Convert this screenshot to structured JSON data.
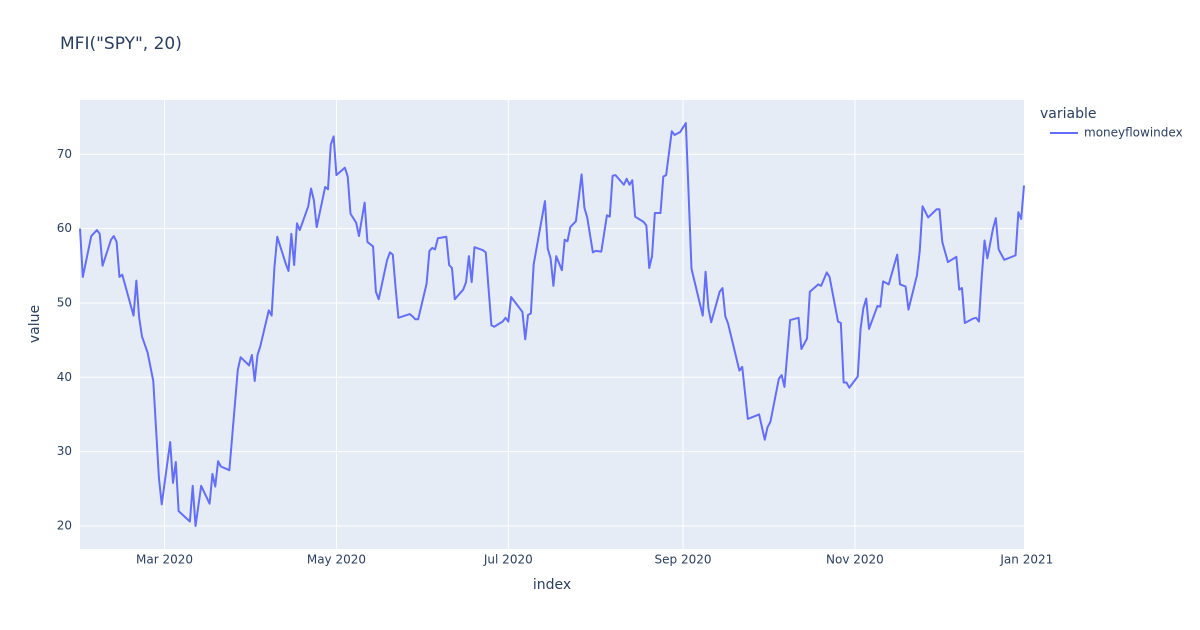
{
  "chart_data": {
    "type": "line",
    "title": "MFI(\"SPY\", 20)",
    "x_label": "index",
    "y_label": "value",
    "legend_title": "variable",
    "grid": true,
    "xlim": [
      "2020-01-31",
      "2020-12-31"
    ],
    "xticks": [
      {
        "value": "2020-03-01",
        "label": "Mar 2020"
      },
      {
        "value": "2020-05-01",
        "label": "May 2020"
      },
      {
        "value": "2020-07-01",
        "label": "Jul 2020"
      },
      {
        "value": "2020-09-01",
        "label": "Sep 2020"
      },
      {
        "value": "2020-11-01",
        "label": "Nov 2020"
      },
      {
        "value": "2021-01-01",
        "label": "Jan 2021"
      }
    ],
    "ylim": [
      16.9,
      77.3
    ],
    "yticks": [
      20,
      30,
      40,
      50,
      60,
      70
    ],
    "x": [
      "2020-01-31",
      "2020-02-01",
      "2020-02-04",
      "2020-02-06",
      "2020-02-07",
      "2020-02-08",
      "2020-02-11",
      "2020-02-12",
      "2020-02-13",
      "2020-02-14",
      "2020-02-15",
      "2020-02-19",
      "2020-02-20",
      "2020-02-21",
      "2020-02-22",
      "2020-02-24",
      "2020-02-26",
      "2020-02-28",
      "2020-02-29",
      "2020-03-03",
      "2020-03-04",
      "2020-03-05",
      "2020-03-06",
      "2020-03-10",
      "2020-03-11",
      "2020-03-12",
      "2020-03-14",
      "2020-03-17",
      "2020-03-18",
      "2020-03-19",
      "2020-03-20",
      "2020-03-21",
      "2020-03-24",
      "2020-03-27",
      "2020-03-28",
      "2020-03-31",
      "2020-04-01",
      "2020-04-02",
      "2020-04-03",
      "2020-04-04",
      "2020-04-07",
      "2020-04-08",
      "2020-04-09",
      "2020-04-10",
      "2020-04-13",
      "2020-04-14",
      "2020-04-15",
      "2020-04-16",
      "2020-04-17",
      "2020-04-18",
      "2020-04-21",
      "2020-04-22",
      "2020-04-23",
      "2020-04-24",
      "2020-04-27",
      "2020-04-28",
      "2020-04-29",
      "2020-04-30",
      "2020-05-01",
      "2020-05-04",
      "2020-05-05",
      "2020-05-06",
      "2020-05-08",
      "2020-05-09",
      "2020-05-11",
      "2020-05-12",
      "2020-05-14",
      "2020-05-15",
      "2020-05-16",
      "2020-05-19",
      "2020-05-20",
      "2020-05-21",
      "2020-05-22",
      "2020-05-23",
      "2020-05-27",
      "2020-05-28",
      "2020-05-29",
      "2020-05-30",
      "2020-06-02",
      "2020-06-03",
      "2020-06-04",
      "2020-06-05",
      "2020-06-06",
      "2020-06-09",
      "2020-06-10",
      "2020-06-11",
      "2020-06-12",
      "2020-06-15",
      "2020-06-16",
      "2020-06-17",
      "2020-06-18",
      "2020-06-19",
      "2020-06-22",
      "2020-06-23",
      "2020-06-25",
      "2020-06-26",
      "2020-06-29",
      "2020-06-30",
      "2020-07-01",
      "2020-07-02",
      "2020-07-06",
      "2020-07-07",
      "2020-07-08",
      "2020-07-09",
      "2020-07-10",
      "2020-07-14",
      "2020-07-15",
      "2020-07-16",
      "2020-07-17",
      "2020-07-18",
      "2020-07-20",
      "2020-07-21",
      "2020-07-22",
      "2020-07-23",
      "2020-07-25",
      "2020-07-27",
      "2020-07-28",
      "2020-07-29",
      "2020-07-31",
      "2020-08-01",
      "2020-08-03",
      "2020-08-05",
      "2020-08-06",
      "2020-08-07",
      "2020-08-08",
      "2020-08-11",
      "2020-08-12",
      "2020-08-13",
      "2020-08-14",
      "2020-08-15",
      "2020-08-18",
      "2020-08-19",
      "2020-08-20",
      "2020-08-21",
      "2020-08-22",
      "2020-08-24",
      "2020-08-25",
      "2020-08-26",
      "2020-08-28",
      "2020-08-29",
      "2020-08-31",
      "2020-09-02",
      "2020-09-04",
      "2020-09-08",
      "2020-09-09",
      "2020-09-10",
      "2020-09-11",
      "2020-09-14",
      "2020-09-15",
      "2020-09-16",
      "2020-09-17",
      "2020-09-21",
      "2020-09-22",
      "2020-09-24",
      "2020-09-28",
      "2020-09-30",
      "2020-10-01",
      "2020-10-02",
      "2020-10-05",
      "2020-10-06",
      "2020-10-07",
      "2020-10-09",
      "2020-10-12",
      "2020-10-13",
      "2020-10-15",
      "2020-10-16",
      "2020-10-19",
      "2020-10-20",
      "2020-10-22",
      "2020-10-23",
      "2020-10-26",
      "2020-10-27",
      "2020-10-28",
      "2020-10-29",
      "2020-10-30",
      "2020-11-02",
      "2020-11-03",
      "2020-11-04",
      "2020-11-05",
      "2020-11-06",
      "2020-11-09",
      "2020-11-10",
      "2020-11-11",
      "2020-11-13",
      "2020-11-16",
      "2020-11-17",
      "2020-11-19",
      "2020-11-20",
      "2020-11-23",
      "2020-11-24",
      "2020-11-25",
      "2020-11-27",
      "2020-11-30",
      "2020-12-01",
      "2020-12-02",
      "2020-12-04",
      "2020-12-07",
      "2020-12-08",
      "2020-12-09",
      "2020-12-10",
      "2020-12-13",
      "2020-12-14",
      "2020-12-15",
      "2020-12-16",
      "2020-12-17",
      "2020-12-18",
      "2020-12-20",
      "2020-12-21",
      "2020-12-22",
      "2020-12-24",
      "2020-12-28",
      "2020-12-29",
      "2020-12-30",
      "2020-12-31"
    ],
    "series": [
      {
        "name": "moneyflowindex",
        "color": "#636efa",
        "values": [
          60,
          53.5,
          59,
          59.8,
          59.3,
          55,
          58.5,
          59,
          58.2,
          53.5,
          53.8,
          48.3,
          53,
          48,
          45.5,
          43.3,
          39.5,
          26.5,
          22.9,
          31.3,
          25.8,
          28.6,
          22,
          20.6,
          25.4,
          20,
          25.4,
          23,
          27,
          25.3,
          28.7,
          28,
          27.5,
          41,
          42.7,
          41.6,
          43,
          39.5,
          43,
          44.2,
          49,
          48.3,
          54.8,
          58.9,
          55.3,
          54.3,
          59.3,
          55.1,
          60.7,
          59.8,
          63,
          65.4,
          63.8,
          60.2,
          65.6,
          65.3,
          71.3,
          72.4,
          67.2,
          68.2,
          67,
          62,
          60.8,
          59,
          63.5,
          58.2,
          57.6,
          51.5,
          50.5,
          55.8,
          56.8,
          56.5,
          52,
          48,
          48.5,
          48.2,
          47.8,
          47.8,
          52.6,
          57,
          57.4,
          57.2,
          58.7,
          58.9,
          55.1,
          54.7,
          50.5,
          51.8,
          52.8,
          56.3,
          52.8,
          57.5,
          57.1,
          56.8,
          47,
          46.8,
          47.5,
          48,
          47.5,
          50.8,
          48.8,
          45.1,
          48.4,
          48.6,
          55.2,
          63.7,
          57.3,
          56,
          52.3,
          56.3,
          54.4,
          58.5,
          58.3,
          60.2,
          61,
          67.3,
          62.8,
          61.5,
          56.8,
          57,
          56.9,
          61.8,
          61.6,
          67.1,
          67.2,
          65.9,
          66.7,
          65.9,
          66.5,
          61.6,
          60.9,
          60.4,
          54.7,
          56.3,
          62.1,
          62.1,
          67,
          67.2,
          73.1,
          72.6,
          73,
          74.2,
          54.6,
          48.3,
          54.2,
          49.3,
          47.4,
          51.5,
          52,
          48.2,
          47.2,
          40.9,
          41.4,
          34.4,
          35,
          31.6,
          33.3,
          34,
          39.8,
          40.3,
          38.7,
          47.7,
          48,
          43.8,
          45.2,
          51.5,
          52.5,
          52.3,
          54.1,
          53.5,
          47.5,
          47.3,
          39.3,
          39.3,
          38.6,
          40.1,
          46.5,
          49.3,
          50.6,
          46.5,
          49.6,
          49.5,
          52.9,
          52.5,
          56.5,
          52.5,
          52.2,
          49.1,
          53.7,
          57,
          63,
          61.5,
          62.6,
          62.6,
          58.2,
          55.5,
          56.2,
          51.8,
          52,
          47.3,
          47.9,
          48,
          47.5,
          53.5,
          58.4,
          56,
          60,
          61.4,
          57.2,
          55.8,
          56.4,
          62.2,
          61.3,
          65.8
        ]
      }
    ]
  }
}
